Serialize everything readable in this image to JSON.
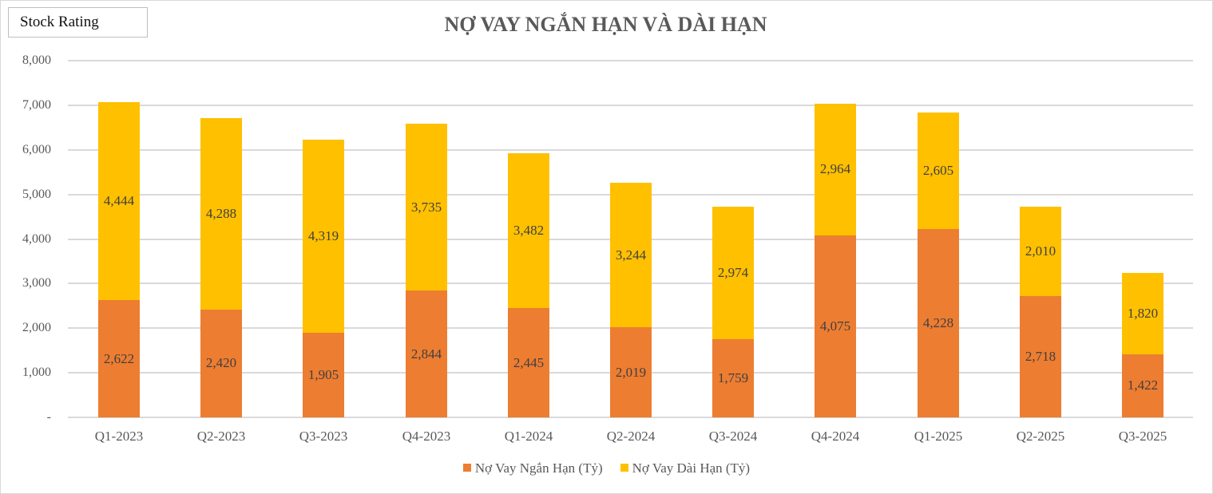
{
  "badge": {
    "label": "Stock Rating"
  },
  "chart_data": {
    "type": "bar",
    "stacked": true,
    "title": "NỢ VAY NGẮN HẠN VÀ DÀI HẠN",
    "xlabel": "",
    "ylabel": "",
    "ylim": [
      0,
      8000
    ],
    "yticks": [
      0,
      1000,
      2000,
      3000,
      4000,
      5000,
      6000,
      7000,
      8000
    ],
    "ytick_labels": [
      "-",
      "1,000",
      "2,000",
      "3,000",
      "4,000",
      "5,000",
      "6,000",
      "7,000",
      "8,000"
    ],
    "grid": true,
    "legend_position": "bottom",
    "categories": [
      "Q1-2023",
      "Q2-2023",
      "Q3-2023",
      "Q4-2023",
      "Q1-2024",
      "Q2-2024",
      "Q3-2024",
      "Q4-2024",
      "Q1-2025",
      "Q2-2025",
      "Q3-2025"
    ],
    "series": [
      {
        "name": "Nợ Vay Ngắn Hạn (Tỷ)",
        "color": "#ed7d31",
        "values": [
          2622,
          2420,
          1905,
          2844,
          2445,
          2019,
          1759,
          4075,
          4228,
          2718,
          1422
        ],
        "labels": [
          "2,622",
          "2,420",
          "1,905",
          "2,844",
          "2,445",
          "2,019",
          "1,759",
          "4,075",
          "4,228",
          "2,718",
          "1,422"
        ]
      },
      {
        "name": "Nợ Vay Dài Hạn (Tỷ)",
        "color": "#ffc000",
        "values": [
          4444,
          4288,
          4319,
          3735,
          3482,
          3244,
          2974,
          2964,
          2605,
          2010,
          1820
        ],
        "labels": [
          "4,444",
          "4,288",
          "4,319",
          "3,735",
          "3,482",
          "3,244",
          "2,974",
          "2,964",
          "2,605",
          "2,010",
          "1,820"
        ]
      }
    ]
  }
}
